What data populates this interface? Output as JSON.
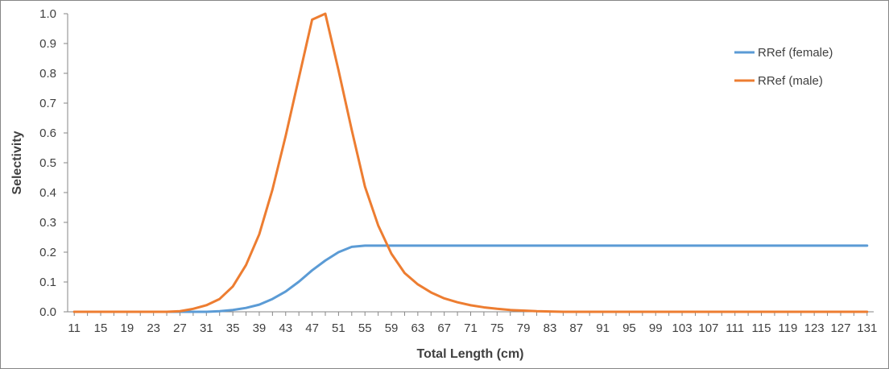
{
  "chart_data": {
    "type": "line",
    "title": "",
    "xlabel": "Total Length (cm)",
    "ylabel": "Selectivity",
    "ylim": [
      0,
      1
    ],
    "yticks": [
      "0.0",
      "0.1",
      "0.2",
      "0.3",
      "0.4",
      "0.5",
      "0.6",
      "0.7",
      "0.8",
      "0.9",
      "1.0"
    ],
    "xticks": [
      "11",
      "15",
      "19",
      "23",
      "27",
      "31",
      "35",
      "39",
      "43",
      "47",
      "51",
      "55",
      "59",
      "63",
      "67",
      "71",
      "75",
      "79",
      "83",
      "87",
      "91",
      "95",
      "99",
      "103",
      "107",
      "111",
      "115",
      "119",
      "123",
      "127",
      "131"
    ],
    "x_start": 11,
    "x_step": 2,
    "legend_position": "top-right",
    "grid": false,
    "series": [
      {
        "name": "RRef (female)",
        "color": "#5B9BD5",
        "values": [
          0,
          0,
          0,
          0,
          0,
          0,
          0,
          0,
          0,
          0,
          0,
          0.002,
          0.006,
          0.013,
          0.024,
          0.043,
          0.068,
          0.101,
          0.139,
          0.172,
          0.2,
          0.218,
          0.222,
          0.222,
          0.222,
          0.222,
          0.222,
          0.222,
          0.222,
          0.222,
          0.222,
          0.222,
          0.222,
          0.222,
          0.222,
          0.222,
          0.222,
          0.222,
          0.222,
          0.222,
          0.222,
          0.222,
          0.222,
          0.222,
          0.222,
          0.222,
          0.222,
          0.222,
          0.222,
          0.222,
          0.222,
          0.222,
          0.222,
          0.222,
          0.222,
          0.222,
          0.222,
          0.222,
          0.222,
          0.222,
          0.222
        ]
      },
      {
        "name": "RRef (male)",
        "color": "#ED7D31",
        "values": [
          0,
          0,
          0,
          0,
          0,
          0,
          0,
          0,
          0.002,
          0.01,
          0.022,
          0.043,
          0.085,
          0.157,
          0.26,
          0.41,
          0.59,
          0.785,
          0.98,
          1.0,
          0.81,
          0.61,
          0.42,
          0.29,
          0.195,
          0.13,
          0.092,
          0.065,
          0.045,
          0.032,
          0.022,
          0.015,
          0.01,
          0.006,
          0.004,
          0.002,
          0.001,
          0,
          0,
          0,
          0,
          0,
          0,
          0,
          0,
          0,
          0,
          0,
          0,
          0,
          0,
          0,
          0,
          0,
          0,
          0,
          0,
          0,
          0,
          0,
          0
        ]
      }
    ]
  }
}
